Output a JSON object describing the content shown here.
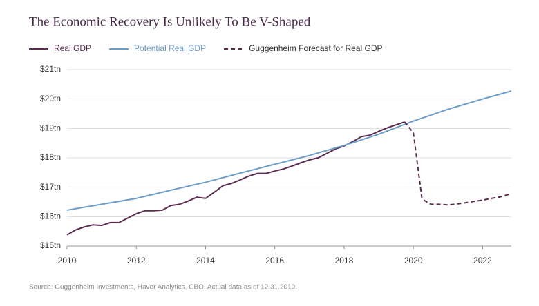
{
  "chart_data": {
    "type": "line",
    "title": "The Economic Recovery Is Unlikely To Be V-Shaped",
    "source": "Source: Guggenheim Investments, Haver Analytics, CBO. Actual data as of 12.31.2019.",
    "series": [
      {
        "name": "Real GDP",
        "color": "#5b2c50",
        "dashed": false,
        "x": [
          2010,
          2010.25,
          2010.5,
          2010.75,
          2011,
          2011.25,
          2011.5,
          2011.75,
          2012,
          2012.25,
          2012.5,
          2012.75,
          2013,
          2013.25,
          2013.5,
          2013.75,
          2014,
          2014.25,
          2014.5,
          2014.75,
          2015,
          2015.25,
          2015.5,
          2015.75,
          2016,
          2016.25,
          2016.5,
          2016.75,
          2017,
          2017.25,
          2017.5,
          2017.75,
          2018,
          2018.25,
          2018.5,
          2018.75,
          2019,
          2019.25,
          2019.5,
          2019.75
        ],
        "values": [
          15.38,
          15.55,
          15.65,
          15.72,
          15.7,
          15.8,
          15.8,
          15.95,
          16.1,
          16.2,
          16.2,
          16.22,
          16.38,
          16.42,
          16.53,
          16.66,
          16.62,
          16.83,
          17.05,
          17.13,
          17.25,
          17.38,
          17.47,
          17.47,
          17.55,
          17.62,
          17.72,
          17.83,
          17.93,
          18.0,
          18.15,
          18.3,
          18.4,
          18.55,
          18.72,
          18.77,
          18.9,
          19.02,
          19.12,
          19.22
        ]
      },
      {
        "name": "Potential Real GDP",
        "color": "#6c9dc9",
        "dashed": false,
        "x": [
          2010,
          2011,
          2012,
          2013,
          2014,
          2015,
          2016,
          2017,
          2018,
          2019,
          2020,
          2021,
          2022,
          2022.83
        ],
        "values": [
          16.22,
          16.42,
          16.62,
          16.9,
          17.17,
          17.48,
          17.78,
          18.08,
          18.42,
          18.8,
          19.25,
          19.65,
          20.0,
          20.27
        ]
      },
      {
        "name": "Guggenheim Forecast for Real GDP",
        "color": "#5b2c50",
        "dashed": true,
        "x": [
          2019.75,
          2020,
          2020.25,
          2020.5,
          2020.75,
          2021,
          2021.25,
          2021.5,
          2021.75,
          2022,
          2022.25,
          2022.5,
          2022.83
        ],
        "values": [
          19.22,
          18.85,
          16.6,
          16.42,
          16.42,
          16.4,
          16.43,
          16.47,
          16.52,
          16.56,
          16.62,
          16.67,
          16.78
        ]
      }
    ],
    "xlim": [
      2010,
      2022.83
    ],
    "xticks": [
      2010,
      2012,
      2014,
      2016,
      2018,
      2020,
      2022
    ],
    "ylim": [
      15,
      21
    ],
    "yticks": [
      {
        "value": 15,
        "label": "$15tn"
      },
      {
        "value": 16,
        "label": "$16tn"
      },
      {
        "value": 17,
        "label": "$17tn"
      },
      {
        "value": 18,
        "label": "$18tn"
      },
      {
        "value": 19,
        "label": "$19tn"
      },
      {
        "value": 20,
        "label": "$20tn"
      },
      {
        "value": 21,
        "label": "$21tn"
      }
    ],
    "grid": true
  }
}
